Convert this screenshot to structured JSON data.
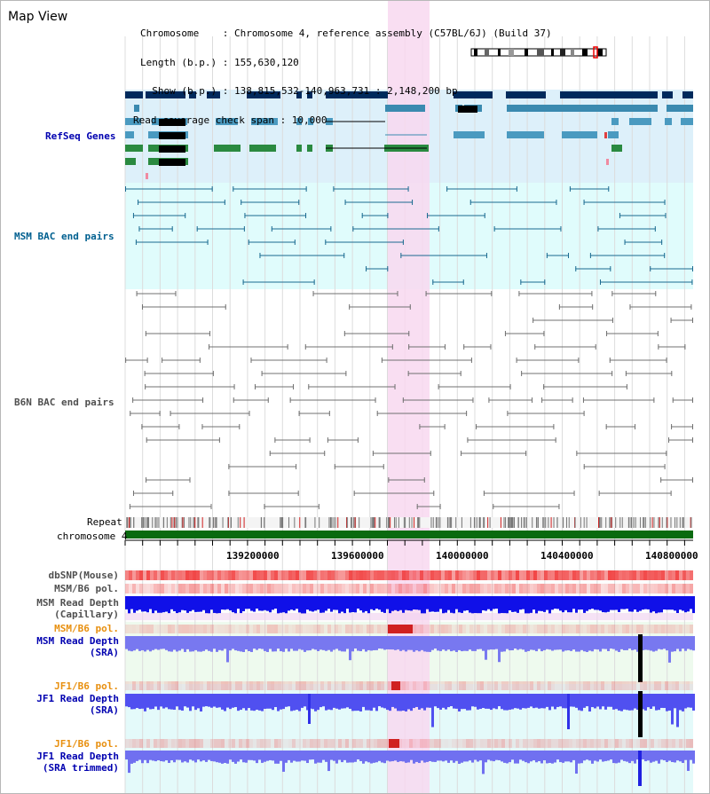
{
  "view": {
    "title": "Map View",
    "header": {
      "chromosome_label": "Chromosome    : Chromosome 4, reference assembly (C57BL/6J) (Build 37)",
      "length_label": "Length (b.p.) : 155,630,120",
      "show_label": "  Show (b.p.) : 138,815,532-140,963,731 : 2,148,200 bp",
      "coverage_label": "Read coverage check span : 10,000"
    }
  },
  "tracks": {
    "refseq": "RefSeq Genes",
    "msm_bac": "MSM BAC end pairs",
    "b6n_bac": "B6N BAC end pairs",
    "repeat": "Repeat",
    "chromosome": "chromosome 4",
    "dbsnp": "dbSNP(Mouse)",
    "msm_b6_pol_1": "MSM/B6 pol.",
    "msm_read_depth_cap_1": "MSM Read Depth",
    "msm_read_depth_cap_2": "(Capillary)",
    "msm_b6_pol_2": "MSM/B6 pol.",
    "msm_read_depth_sra_1": "MSM Read Depth",
    "msm_read_depth_sra_2": "(SRA)",
    "jf1_b6_pol_1": "JF1/B6 pol.",
    "jf1_read_depth_sra_1": "JF1 Read Depth",
    "jf1_read_depth_sra_2": "(SRA)",
    "jf1_b6_pol_2": "JF1/B6 pol.",
    "jf1_read_depth_trim_1": "JF1 Read Depth",
    "jf1_read_depth_trim_2": "(SRA trimmed)"
  },
  "axis": {
    "ticks": [
      "139200000",
      "139600000",
      "140000000",
      "140400000",
      "140800000"
    ]
  },
  "colors": {
    "navy": "#002a5c",
    "refseq_bg": "#ddf0fa",
    "bac_bg": "#e0fcfc",
    "highlight": "#f8d8f0",
    "orange": "#e89010",
    "blue_label": "#0000b0",
    "teal_label": "#006090"
  }
}
